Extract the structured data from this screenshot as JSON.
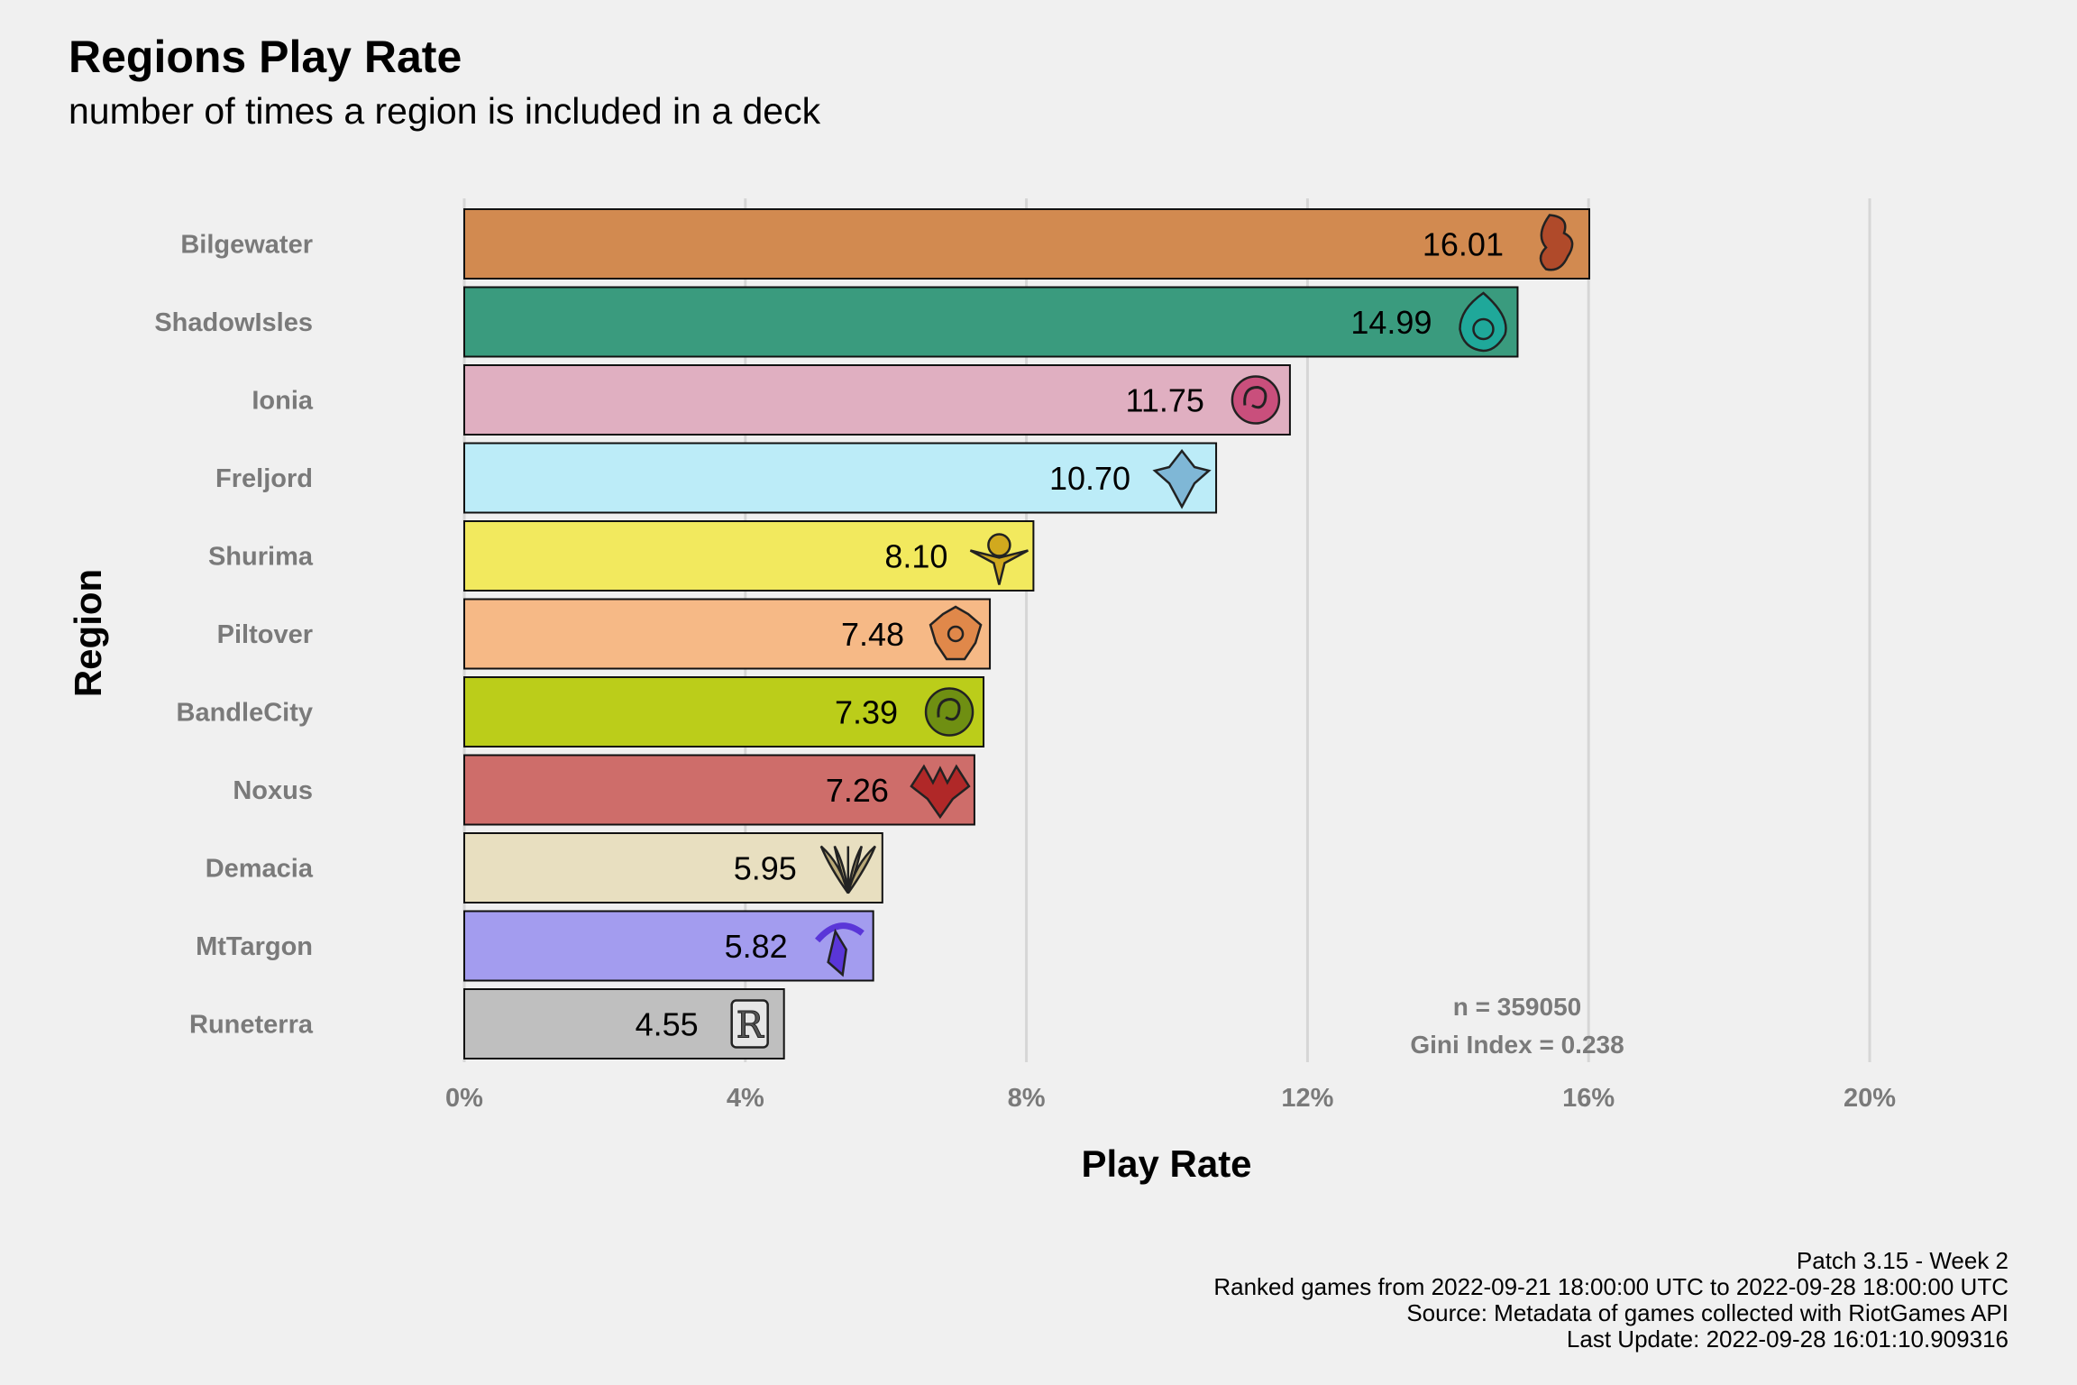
{
  "title": "Regions Play Rate",
  "subtitle": "number of times a region is included in a deck",
  "chart_data": {
    "type": "bar",
    "orientation": "horizontal",
    "xlabel": "Play Rate",
    "ylabel": "Region",
    "xlim": [
      0,
      20
    ],
    "xticks": [
      "0%",
      "4%",
      "8%",
      "12%",
      "16%",
      "20%"
    ],
    "categories": [
      "Bilgewater",
      "ShadowIsles",
      "Ionia",
      "Freljord",
      "Shurima",
      "Piltover",
      "BandleCity",
      "Noxus",
      "Demacia",
      "MtTargon",
      "Runeterra"
    ],
    "values": [
      16.01,
      14.99,
      11.75,
      10.7,
      8.1,
      7.48,
      7.39,
      7.26,
      5.95,
      5.82,
      4.55
    ],
    "value_labels": [
      "16.01",
      "14.99",
      "11.75",
      "10.70",
      "8.10",
      "7.48",
      "7.39",
      "7.26",
      "5.95",
      "5.82",
      "4.55"
    ],
    "colors": [
      "#d28a50",
      "#3a9b7e",
      "#e0afc1",
      "#bcecf8",
      "#f2e95e",
      "#f6b986",
      "#bbcd1a",
      "#ce6d6a",
      "#e8dfc0",
      "#a39cef",
      "#bfbfbf"
    ],
    "icons": [
      "bilgewater-icon",
      "shadowisles-icon",
      "ionia-icon",
      "freljord-icon",
      "shurima-icon",
      "piltover-icon",
      "bandlecity-icon",
      "noxus-icon",
      "demacia-icon",
      "mttargon-icon",
      "runeterra-icon"
    ],
    "icon_colors": [
      "#b04a2a",
      "#1fa89a",
      "#c94f7c",
      "#7fb7d6",
      "#d1a91e",
      "#e0884a",
      "#6f8f12",
      "#b02828",
      "#b8a878",
      "#5a36d8",
      "#cccccc"
    ],
    "grid": true,
    "annotations": [
      "n = 359050",
      "Gini Index = 0.238"
    ]
  },
  "caption": [
    "Patch 3.15 - Week 2",
    "Ranked games from 2022-09-21 18:00:00 UTC to 2022-09-28 18:00:00 UTC",
    "Source: Metadata of games collected with RiotGames API",
    "Last Update: 2022-09-28 16:01:10.909316"
  ]
}
